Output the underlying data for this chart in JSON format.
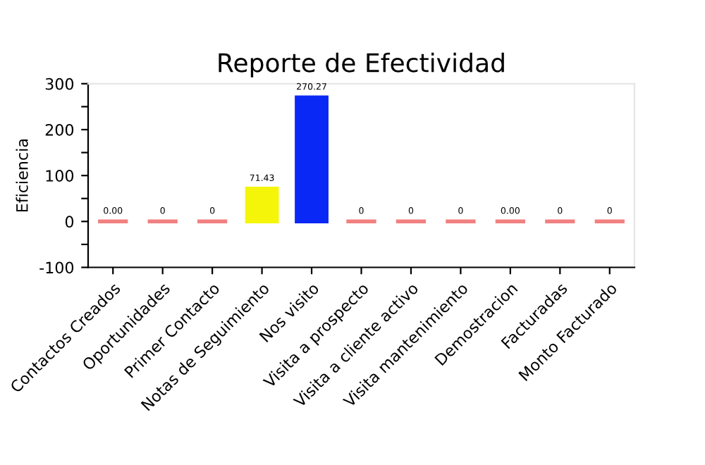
{
  "chart_data": {
    "type": "bar",
    "title": "Reporte de Efectividad",
    "ylabel": "Eficiencia",
    "categories": [
      "Contactos Creados",
      "Oportunidades",
      "Primer Contacto",
      "Notas de Seguimiento",
      "Nos visito",
      "Visita a prospecto",
      "Visita a cliente activo",
      "Visita mantenimiento",
      "Demostracion",
      "Facturadas",
      "Monto Facturado"
    ],
    "values": [
      0,
      0,
      0,
      71.43,
      270.27,
      0,
      0,
      0,
      0,
      0,
      0
    ],
    "value_labels": [
      "0.00",
      "0",
      "0",
      "71.43",
      "270.27",
      "0",
      "0",
      "0",
      "0.00",
      "0",
      "0"
    ],
    "colors": [
      "#f28080",
      "#f28080",
      "#f28080",
      "#f5f50a",
      "#0a28f5",
      "#f28080",
      "#f28080",
      "#f28080",
      "#f28080",
      "#f28080",
      "#f28080"
    ],
    "ylim": [
      -100,
      300
    ],
    "yticks": [
      -100,
      {
        "value": -50,
        "label": null
      },
      0,
      {
        "value": 50,
        "label": null
      },
      100,
      {
        "value": 150,
        "label": null
      },
      200,
      {
        "value": 250,
        "label": null
      },
      300
    ],
    "grid": false
  }
}
